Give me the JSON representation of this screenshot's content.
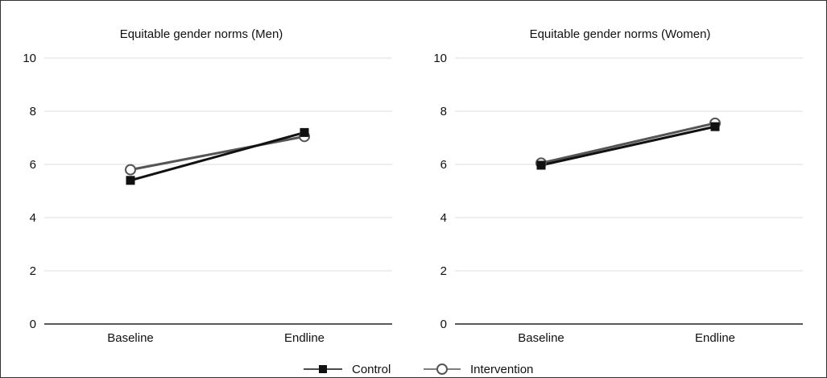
{
  "chart_data": [
    {
      "type": "line",
      "title": "Equitable gender norms (Men)",
      "categories": [
        "Baseline",
        "Endline"
      ],
      "ylim": [
        0,
        10
      ],
      "yticks": [
        0,
        2,
        4,
        6,
        8,
        10
      ],
      "grid": true,
      "series": [
        {
          "name": "Control",
          "values": [
            5.4,
            7.2
          ],
          "marker": "filled-square",
          "color": "#111111"
        },
        {
          "name": "Intervention",
          "values": [
            5.8,
            7.05
          ],
          "marker": "open-circle",
          "color": "#555555"
        }
      ]
    },
    {
      "type": "line",
      "title": "Equitable gender norms (Women)",
      "categories": [
        "Baseline",
        "Endline"
      ],
      "ylim": [
        0,
        10
      ],
      "yticks": [
        0,
        2,
        4,
        6,
        8,
        10
      ],
      "grid": true,
      "series": [
        {
          "name": "Control",
          "values": [
            5.97,
            7.42
          ],
          "marker": "filled-square",
          "color": "#111111"
        },
        {
          "name": "Intervention",
          "values": [
            6.05,
            7.55
          ],
          "marker": "open-circle",
          "color": "#555555"
        }
      ]
    }
  ],
  "legend": {
    "placement": "bottom-center",
    "items": [
      {
        "label": "Control",
        "marker": "filled-square",
        "color": "#111111"
      },
      {
        "label": "Intervention",
        "marker": "open-circle",
        "color": "#555555"
      }
    ]
  },
  "colors": {
    "gridline": "#dddddd",
    "axis": "#222222",
    "text": "#111111"
  }
}
